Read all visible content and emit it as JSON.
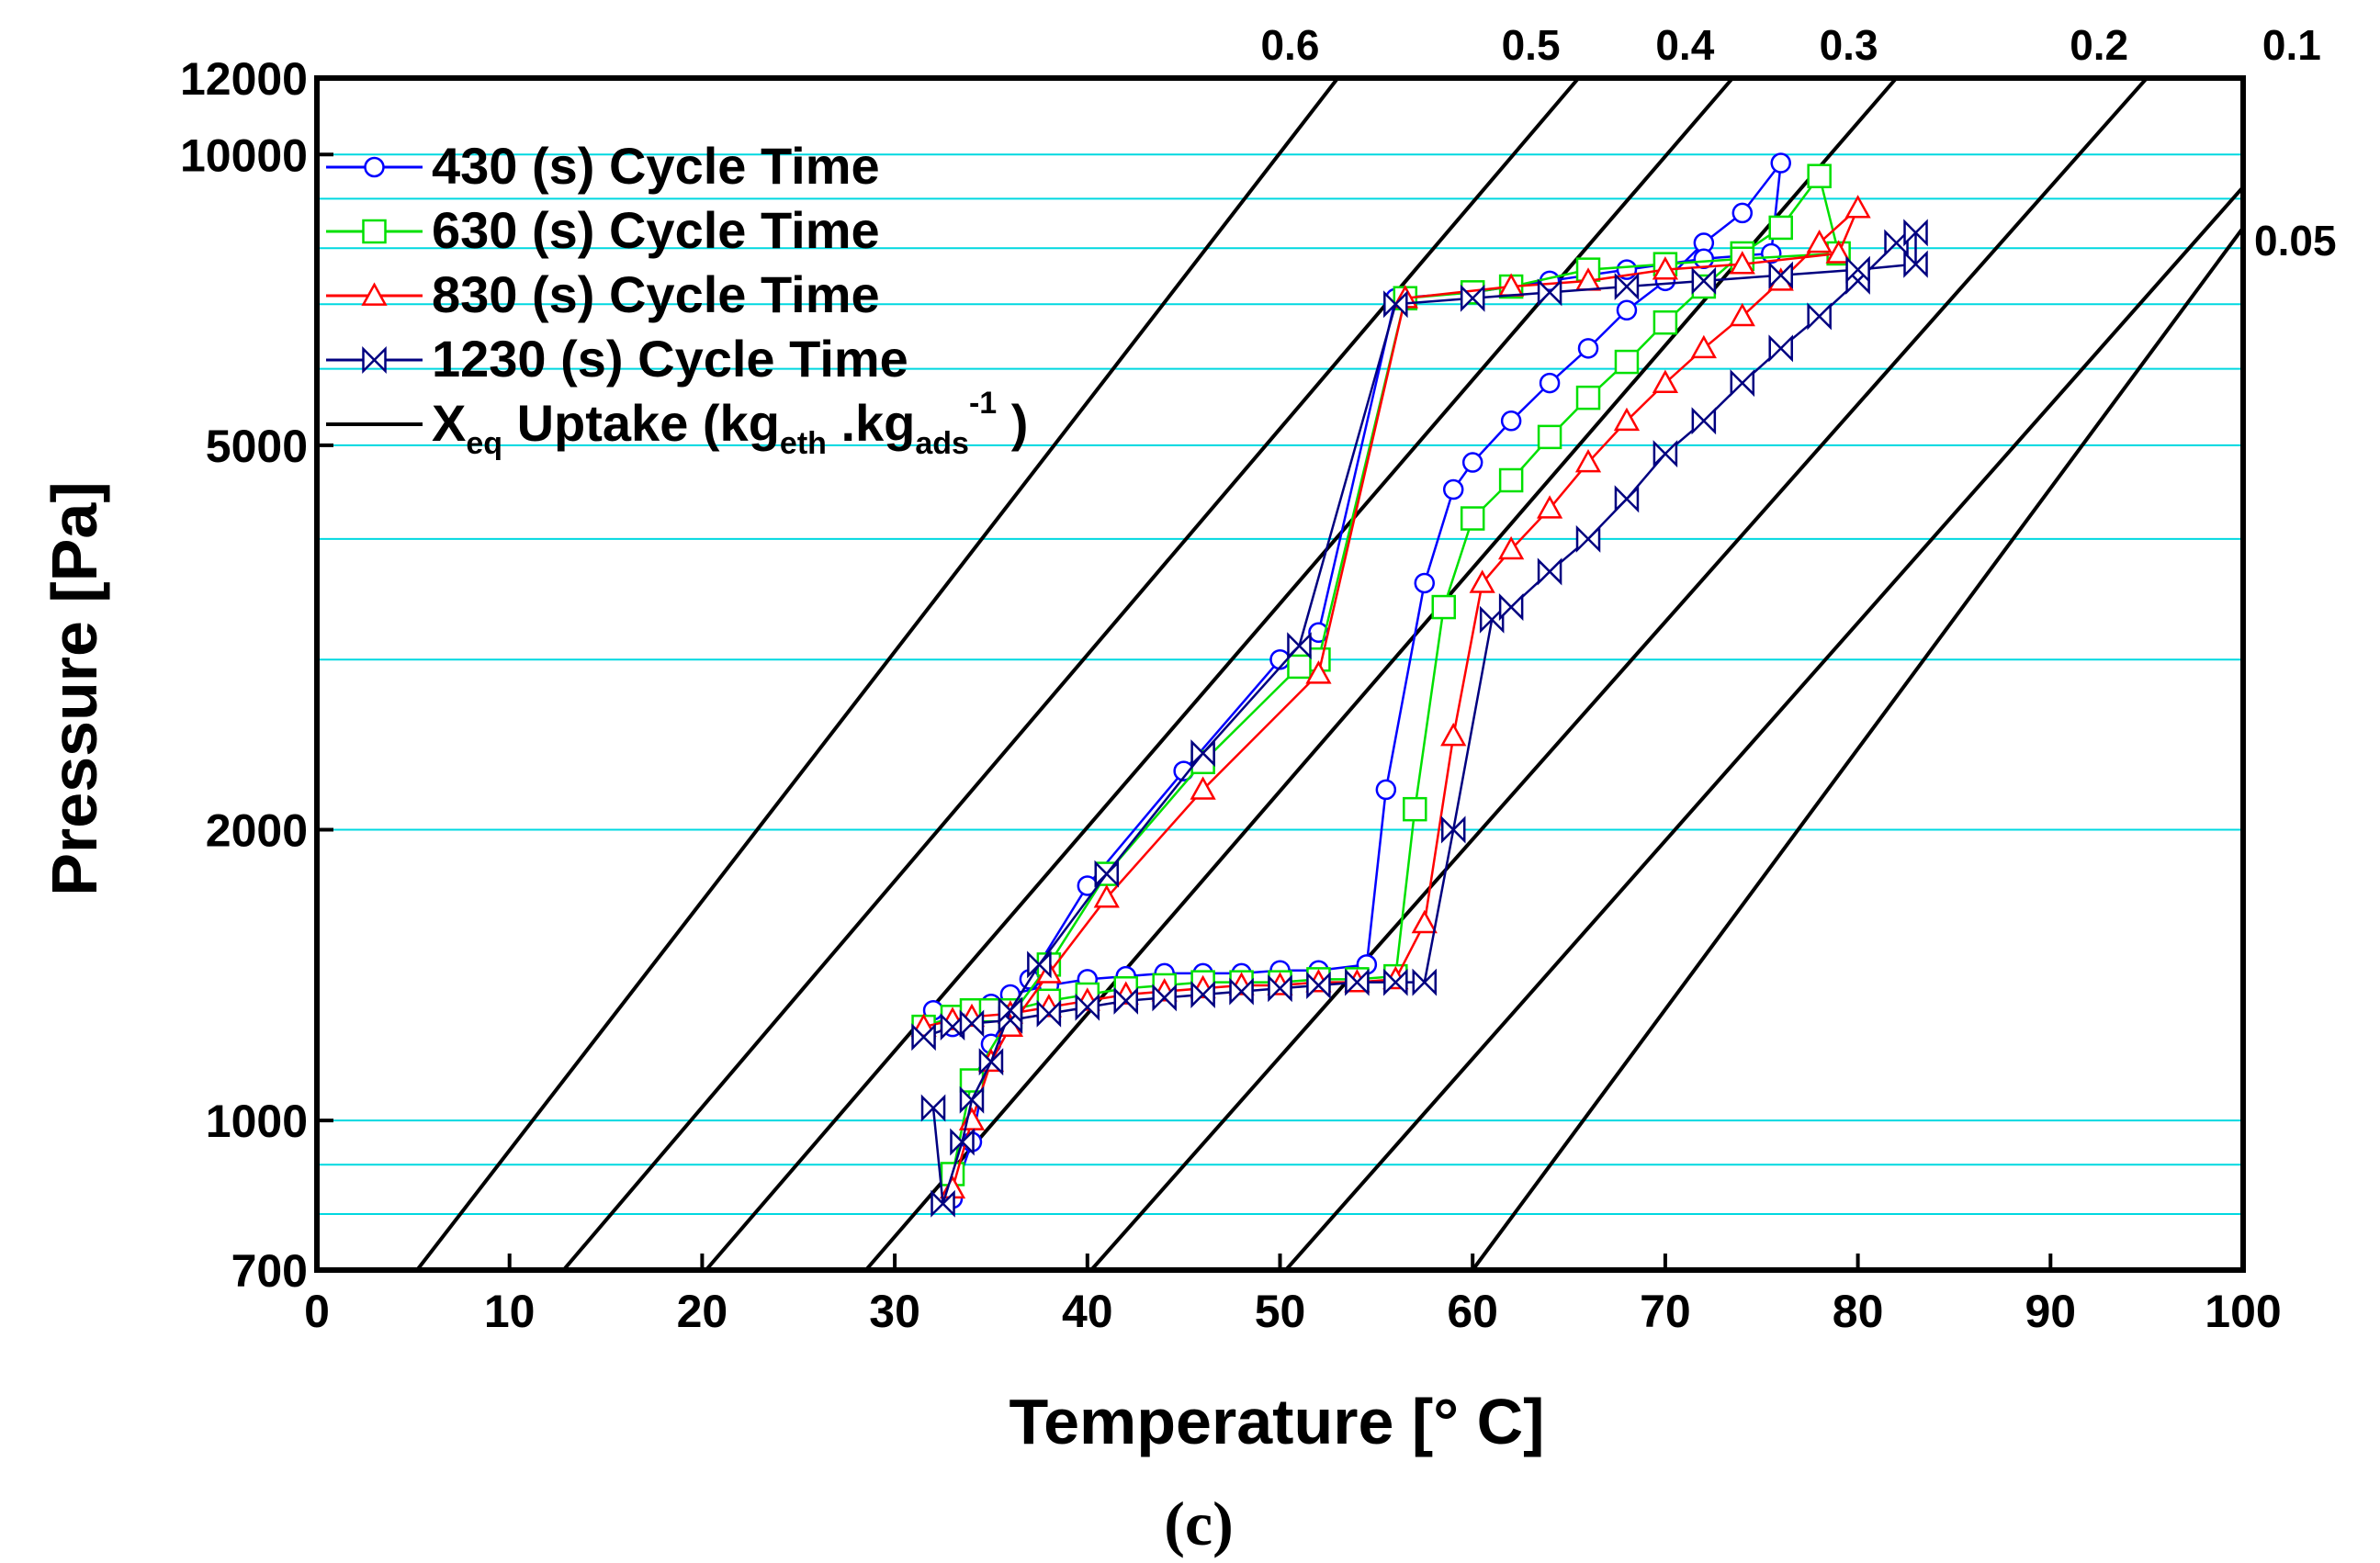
{
  "chart_data": {
    "type": "line",
    "title": "",
    "caption": "(c)",
    "xlabel": "Temperature [° C]",
    "ylabel": "Pressure [Pa]",
    "xlim": [
      0,
      100
    ],
    "ylim": [
      700,
      12000
    ],
    "yscale": "log",
    "grid": "horizontal",
    "grid_color": "#00d8e0",
    "x_ticks": [
      "0",
      "10",
      "20",
      "30",
      "40",
      "50",
      "60",
      "70",
      "80",
      "90",
      "100"
    ],
    "y_ticks": [
      "700",
      "1000",
      "2000",
      "5000",
      "10000",
      "12000"
    ],
    "y_grid_values": [
      800,
      900,
      1000,
      2000,
      3000,
      4000,
      5000,
      6000,
      7000,
      8000,
      9000,
      10000
    ],
    "legend": {
      "placement": "top-left",
      "entries": [
        {
          "label": "430 (s) Cycle Time",
          "color": "#0000ff",
          "marker": "circle"
        },
        {
          "label": "630 (s) Cycle Time",
          "color": "#00e000",
          "marker": "square"
        },
        {
          "label": "830 (s) Cycle Time",
          "color": "#ff0000",
          "marker": "triangle"
        },
        {
          "label": "1230 (s) Cycle Time",
          "color": "#000080",
          "marker": "bowtie"
        }
      ],
      "isostere_entry": {
        "prefix": "X",
        "sub1": "eq",
        "mid": " Uptake (kg",
        "sub2": "eth",
        "mid2": " .kg",
        "sub3": "ads",
        "sup": "-1",
        "suffix": " )",
        "color": "#000000"
      }
    },
    "isosteres": [
      {
        "label": "0.6",
        "points": [
          [
            5.2,
            700
          ],
          [
            53,
            12000
          ]
        ]
      },
      {
        "label": "0.5",
        "points": [
          [
            12.8,
            700
          ],
          [
            65.5,
            12000
          ]
        ]
      },
      {
        "label": "0.4",
        "points": [
          [
            20.2,
            700
          ],
          [
            73.5,
            12000
          ]
        ]
      },
      {
        "label": "0.3",
        "points": [
          [
            28.5,
            700
          ],
          [
            82,
            12000
          ]
        ]
      },
      {
        "label": "0.2",
        "points": [
          [
            40.2,
            700
          ],
          [
            95,
            12000
          ]
        ]
      },
      {
        "label": "0.1",
        "points": [
          [
            50.3,
            700
          ],
          [
            105,
            12000
          ]
        ]
      },
      {
        "label": "0.05",
        "points": [
          [
            60,
            700
          ],
          [
            100,
            8400
          ]
        ]
      }
    ],
    "series": [
      {
        "name": "430 (s) Cycle Time",
        "color": "#0000ff",
        "marker": "circle",
        "points": [
          [
            32,
            1300
          ],
          [
            33,
            1250
          ],
          [
            33.5,
            1280
          ],
          [
            34,
            1300
          ],
          [
            35,
            1320
          ],
          [
            36,
            1350
          ],
          [
            38,
            1380
          ],
          [
            40,
            1400
          ],
          [
            42,
            1410
          ],
          [
            44,
            1420
          ],
          [
            46,
            1420
          ],
          [
            48,
            1420
          ],
          [
            50,
            1430
          ],
          [
            52,
            1430
          ],
          [
            54.5,
            1450
          ],
          [
            55.5,
            2200
          ],
          [
            57.5,
            3600
          ],
          [
            59,
            4500
          ],
          [
            60,
            4800
          ],
          [
            62,
            5300
          ],
          [
            64,
            5800
          ],
          [
            66,
            6300
          ],
          [
            68,
            6900
          ],
          [
            70,
            7400
          ],
          [
            72,
            8100
          ],
          [
            74,
            8700
          ],
          [
            76,
            9800
          ],
          [
            75.5,
            7900
          ],
          [
            72,
            7800
          ],
          [
            68,
            7600
          ],
          [
            64,
            7400
          ],
          [
            60,
            7200
          ],
          [
            56,
            7100
          ],
          [
            52,
            3200
          ],
          [
            50,
            3000
          ],
          [
            45,
            2300
          ],
          [
            40,
            1750
          ],
          [
            37,
            1400
          ],
          [
            35,
            1200
          ],
          [
            34,
            950
          ],
          [
            33,
            830
          ]
        ]
      },
      {
        "name": "630 (s) Cycle Time",
        "color": "#00e000",
        "marker": "square",
        "points": [
          [
            31.5,
            1250
          ],
          [
            33,
            1280
          ],
          [
            34,
            1300
          ],
          [
            35,
            1300
          ],
          [
            36,
            1300
          ],
          [
            38,
            1330
          ],
          [
            40,
            1350
          ],
          [
            42,
            1370
          ],
          [
            44,
            1380
          ],
          [
            46,
            1390
          ],
          [
            48,
            1390
          ],
          [
            50,
            1390
          ],
          [
            52,
            1400
          ],
          [
            54,
            1400
          ],
          [
            56,
            1410
          ],
          [
            57,
            2100
          ],
          [
            58.5,
            3400
          ],
          [
            60,
            4200
          ],
          [
            62,
            4600
          ],
          [
            64,
            5100
          ],
          [
            66,
            5600
          ],
          [
            68,
            6100
          ],
          [
            70,
            6700
          ],
          [
            72,
            7300
          ],
          [
            74,
            7900
          ],
          [
            76,
            8400
          ],
          [
            78,
            9500
          ],
          [
            79,
            7900
          ],
          [
            74,
            7800
          ],
          [
            70,
            7700
          ],
          [
            66,
            7600
          ],
          [
            62,
            7300
          ],
          [
            60,
            7200
          ],
          [
            56.5,
            7100
          ],
          [
            52,
            3000
          ],
          [
            51,
            2950
          ],
          [
            46,
            2350
          ],
          [
            41,
            1800
          ],
          [
            38,
            1450
          ],
          [
            36,
            1280
          ],
          [
            34,
            1100
          ],
          [
            33,
            880
          ]
        ]
      },
      {
        "name": "830 (s) Cycle Time",
        "color": "#ff0000",
        "marker": "triangle",
        "points": [
          [
            31.5,
            1250
          ],
          [
            33,
            1270
          ],
          [
            34,
            1280
          ],
          [
            36,
            1290
          ],
          [
            38,
            1310
          ],
          [
            40,
            1330
          ],
          [
            42,
            1350
          ],
          [
            44,
            1360
          ],
          [
            46,
            1370
          ],
          [
            48,
            1380
          ],
          [
            50,
            1380
          ],
          [
            52,
            1390
          ],
          [
            54,
            1390
          ],
          [
            56,
            1400
          ],
          [
            57.5,
            1600
          ],
          [
            59,
            2500
          ],
          [
            60.5,
            3600
          ],
          [
            62,
            3900
          ],
          [
            64,
            4300
          ],
          [
            66,
            4800
          ],
          [
            68,
            5300
          ],
          [
            70,
            5800
          ],
          [
            72,
            6300
          ],
          [
            74,
            6800
          ],
          [
            76,
            7400
          ],
          [
            78,
            8100
          ],
          [
            80,
            8800
          ],
          [
            79,
            7900
          ],
          [
            74,
            7700
          ],
          [
            70,
            7600
          ],
          [
            66,
            7400
          ],
          [
            62,
            7300
          ],
          [
            56.5,
            7100
          ],
          [
            52,
            2900
          ],
          [
            46,
            2200
          ],
          [
            41,
            1700
          ],
          [
            38,
            1420
          ],
          [
            36,
            1250
          ],
          [
            35,
            1150
          ],
          [
            34,
            1000
          ],
          [
            33,
            850
          ]
        ]
      },
      {
        "name": "1230 (s) Cycle Time",
        "color": "#000080",
        "marker": "bowtie",
        "points": [
          [
            31.5,
            1220
          ],
          [
            33,
            1250
          ],
          [
            34,
            1260
          ],
          [
            36,
            1270
          ],
          [
            38,
            1290
          ],
          [
            40,
            1310
          ],
          [
            42,
            1330
          ],
          [
            44,
            1340
          ],
          [
            46,
            1350
          ],
          [
            48,
            1360
          ],
          [
            50,
            1370
          ],
          [
            52,
            1380
          ],
          [
            54,
            1390
          ],
          [
            56,
            1390
          ],
          [
            57.5,
            1390
          ],
          [
            59,
            2000
          ],
          [
            61,
            3300
          ],
          [
            62,
            3400
          ],
          [
            64,
            3700
          ],
          [
            66,
            4000
          ],
          [
            68,
            4400
          ],
          [
            70,
            4900
          ],
          [
            72,
            5300
          ],
          [
            74,
            5800
          ],
          [
            76,
            6300
          ],
          [
            78,
            6800
          ],
          [
            80,
            7400
          ],
          [
            82,
            8100
          ],
          [
            83,
            8300
          ],
          [
            83,
            7700
          ],
          [
            80,
            7600
          ],
          [
            76,
            7500
          ],
          [
            72,
            7400
          ],
          [
            68,
            7300
          ],
          [
            64,
            7200
          ],
          [
            60,
            7100
          ],
          [
            56,
            7000
          ],
          [
            51,
            3100
          ],
          [
            46,
            2400
          ],
          [
            41,
            1800
          ],
          [
            37.5,
            1450
          ],
          [
            36,
            1300
          ],
          [
            35,
            1150
          ],
          [
            34,
            1050
          ],
          [
            33.5,
            950
          ],
          [
            32.5,
            820
          ],
          [
            32,
            1030
          ]
        ]
      }
    ]
  }
}
